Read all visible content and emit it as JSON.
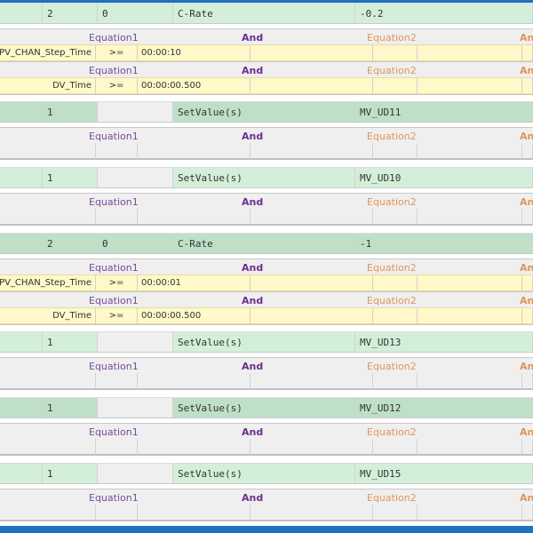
{
  "colors": {
    "accent": "#1e73be",
    "step_light": "#d4efd9",
    "step_dark": "#bfe0c6",
    "condition": "#fff8c8",
    "header": "#efefef"
  },
  "equation_header": {
    "eq1": "Equation1",
    "and1": "And",
    "eq2": "Equation2",
    "and2": "An"
  },
  "blocks": [
    {
      "step": {
        "c1": "2",
        "c2": "0",
        "c3": "C-Rate",
        "c4": "-0.2",
        "shade": "light"
      },
      "conditions": [
        {
          "name": "PV_CHAN_Step_Time",
          "op": ">=",
          "value": "00:00:10"
        },
        {
          "name": "DV_Time",
          "op": ">=",
          "value": "00:00:00.500"
        }
      ]
    },
    {
      "step": {
        "c1": "1",
        "c2": "",
        "c3": "SetValue(s)",
        "c4": "MV_UD11",
        "shade": "dark"
      },
      "conditions": [
        null
      ]
    },
    {
      "step": {
        "c1": "1",
        "c2": "",
        "c3": "SetValue(s)",
        "c4": "MV_UD10",
        "shade": "light"
      },
      "conditions": [
        null
      ]
    },
    {
      "step": {
        "c1": "2",
        "c2": "0",
        "c3": "C-Rate",
        "c4": "-1",
        "shade": "dark"
      },
      "conditions": [
        {
          "name": "PV_CHAN_Step_Time",
          "op": ">=",
          "value": "00:00:01"
        },
        {
          "name": "DV_Time",
          "op": ">=",
          "value": "00:00:00.500"
        }
      ]
    },
    {
      "step": {
        "c1": "1",
        "c2": "",
        "c3": "SetValue(s)",
        "c4": "MV_UD13",
        "shade": "light"
      },
      "conditions": [
        null
      ]
    },
    {
      "step": {
        "c1": "1",
        "c2": "",
        "c3": "SetValue(s)",
        "c4": "MV_UD12",
        "shade": "dark"
      },
      "conditions": [
        null
      ]
    },
    {
      "step": {
        "c1": "1",
        "c2": "",
        "c3": "SetValue(s)",
        "c4": "MV_UD15",
        "shade": "light"
      },
      "conditions": [
        null
      ]
    }
  ]
}
